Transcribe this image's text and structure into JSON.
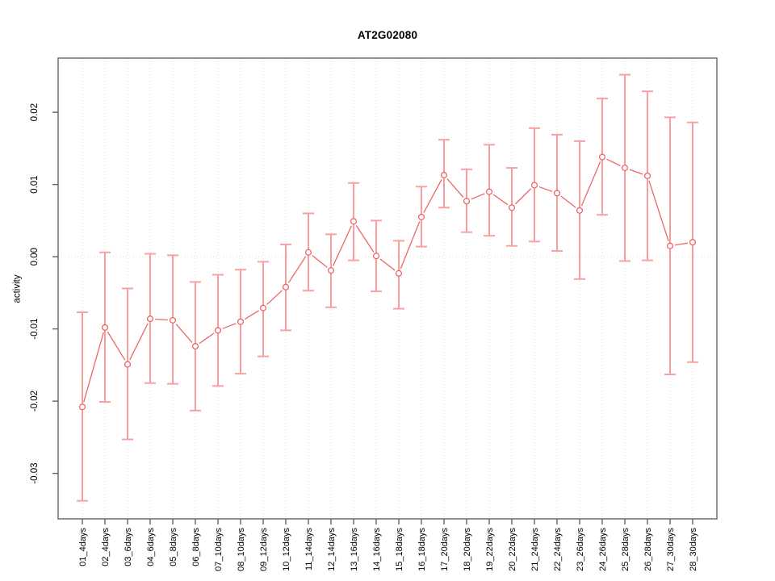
{
  "chart_data": {
    "type": "line",
    "title": "AT2G02080",
    "xlabel": "",
    "ylabel": "activity",
    "categories": [
      "01_4days",
      "02_4days",
      "03_6days",
      "04_6days",
      "05_8days",
      "06_8days",
      "07_10days",
      "08_10days",
      "09_12days",
      "10_12days",
      "11_14days",
      "12_14days",
      "13_16days",
      "14_16days",
      "15_18days",
      "16_18days",
      "17_20days",
      "18_20days",
      "19_22days",
      "20_22days",
      "21_24days",
      "22_24days",
      "23_26days",
      "24_26days",
      "25_28days",
      "26_28days",
      "27_30days",
      "28_30days"
    ],
    "series": [
      {
        "name": "activity",
        "marker": "open-circle",
        "values": [
          -0.0208,
          -0.0098,
          -0.0149,
          -0.0086,
          -0.0088,
          -0.0124,
          -0.0102,
          -0.009,
          -0.0071,
          -0.0042,
          0.0006,
          -0.0019,
          0.0049,
          0.0001,
          -0.0023,
          0.0055,
          0.0113,
          0.0077,
          0.009,
          0.0068,
          0.0099,
          0.0088,
          0.0064,
          0.0138,
          0.0123,
          0.0112,
          0.0015,
          0.002
        ],
        "lower": [
          -0.0338,
          -0.0201,
          -0.0253,
          -0.0175,
          -0.0176,
          -0.0213,
          -0.0179,
          -0.0162,
          -0.0138,
          -0.0102,
          -0.0047,
          -0.007,
          -0.0005,
          -0.0048,
          -0.0072,
          0.0014,
          0.0068,
          0.0034,
          0.0029,
          0.0015,
          0.0021,
          0.0008,
          -0.0031,
          0.0058,
          -0.0006,
          -0.0005,
          -0.0163,
          -0.0146
        ],
        "upper": [
          -0.0077,
          0.0006,
          -0.0044,
          0.0004,
          0.0002,
          -0.0035,
          -0.0025,
          -0.0018,
          -0.0007,
          0.0017,
          0.006,
          0.0031,
          0.0102,
          0.005,
          0.0022,
          0.0097,
          0.0162,
          0.0121,
          0.0155,
          0.0123,
          0.0178,
          0.0169,
          0.016,
          0.0219,
          0.0252,
          0.0229,
          0.0193,
          0.0186
        ]
      }
    ],
    "ylim": [
      -0.0363,
      0.0275
    ],
    "yticks": [
      -0.03,
      -0.02,
      -0.01,
      0.0,
      0.01,
      0.02
    ],
    "ytick_labels": [
      "-0.03",
      "-0.02",
      "-0.01",
      "0.00",
      "0.01",
      "0.02"
    ],
    "grid": "vertical dotted gridline at every category; dotted horizontal line at y=0; no legend",
    "legend": null,
    "colors": {
      "line": "#ee6565",
      "marker_stroke": "#ee6565",
      "marker_fill": "#ffffff",
      "error_bar": "#f48c8c",
      "error_cap": "#f6a2a2",
      "grid": "#d9d9d9",
      "zero_line": "#dcdcdc",
      "frame": "#636363",
      "tick": "#636363",
      "text": "#000000"
    }
  }
}
